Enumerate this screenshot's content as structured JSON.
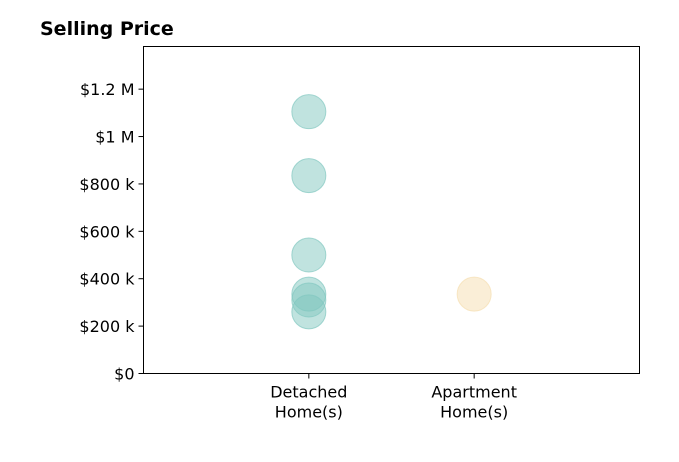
{
  "chart_data": {
    "type": "scatter",
    "title": "Selling Price",
    "xlabel": "",
    "ylabel": "",
    "categories": [
      [
        "Detached",
        "Home(s)"
      ],
      [
        "Apartment",
        "Home(s)"
      ]
    ],
    "xlim": [
      -1,
      2
    ],
    "ylim": [
      0,
      1380000
    ],
    "yticks": [
      {
        "value": 0,
        "label": "$0"
      },
      {
        "value": 200000,
        "label": "$200 k"
      },
      {
        "value": 400000,
        "label": "$400 k"
      },
      {
        "value": 600000,
        "label": "$600 k"
      },
      {
        "value": 800000,
        "label": "$800 k"
      },
      {
        "value": 1000000,
        "label": "$1 M"
      },
      {
        "value": 1200000,
        "label": "$1.2 M"
      }
    ],
    "grid": false,
    "legend": "none",
    "series": [
      {
        "category_index": 0,
        "color": "#81c8c0",
        "values": [
          1105000,
          835000,
          500000,
          335000,
          310000,
          260000
        ]
      },
      {
        "category_index": 1,
        "color": "#f5deb0",
        "values": [
          335000
        ]
      }
    ]
  }
}
